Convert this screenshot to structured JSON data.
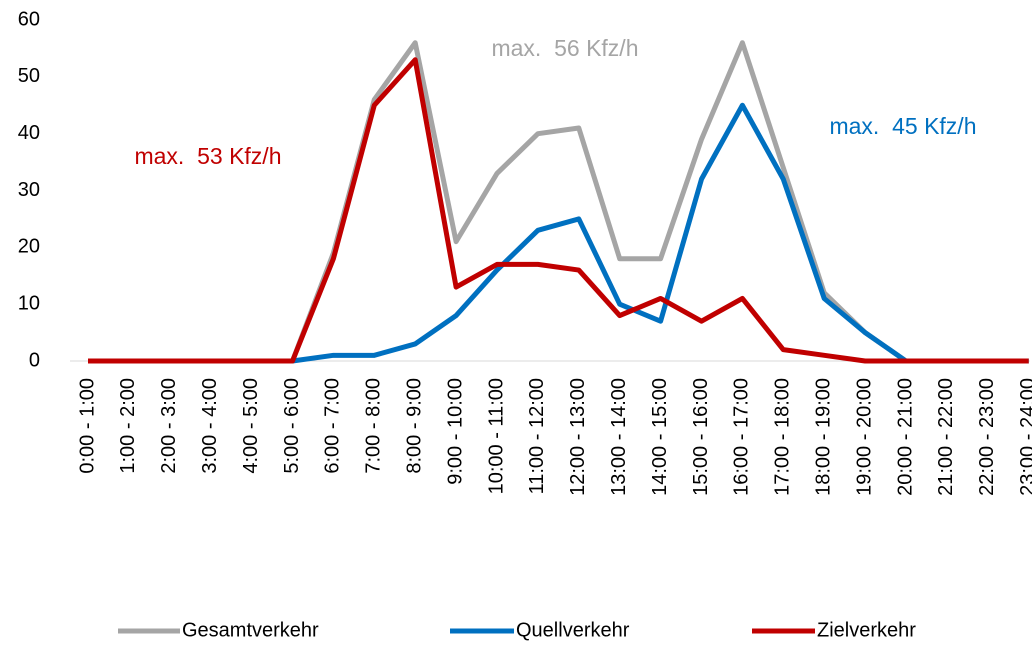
{
  "chart_data": {
    "type": "line",
    "categories": [
      "0:00 - 1:00",
      "1:00 - 2:00",
      "2:00 - 3:00",
      "3:00 - 4:00",
      "4:00 - 5:00",
      "5:00 - 6:00",
      "6:00 - 7:00",
      "7:00 - 8:00",
      "8:00 - 9:00",
      "9:00 - 10:00",
      "10:00 - 11:00",
      "11:00 - 12:00",
      "12:00 - 13:00",
      "13:00 - 14:00",
      "14:00 - 15:00",
      "15:00 - 16:00",
      "16:00 - 17:00",
      "17:00 - 18:00",
      "18:00 - 19:00",
      "19:00 - 20:00",
      "20:00 - 21:00",
      "21:00 - 22:00",
      "22:00 - 23:00",
      "23:00 - 24:00"
    ],
    "series": [
      {
        "name": "Gesamtverkehr",
        "color": "#a5a5a5",
        "values": [
          0,
          0,
          0,
          0,
          0,
          0,
          19,
          46,
          56,
          21,
          33,
          40,
          41,
          18,
          18,
          39,
          56,
          34,
          12,
          5,
          0,
          0,
          0,
          0
        ]
      },
      {
        "name": "Quellverkehr",
        "color": "#0070c0",
        "values": [
          0,
          0,
          0,
          0,
          0,
          0,
          1,
          1,
          3,
          8,
          16,
          23,
          25,
          10,
          7,
          32,
          45,
          32,
          11,
          5,
          0,
          0,
          0,
          0
        ]
      },
      {
        "name": "Zielverkehr",
        "color": "#c00000",
        "values": [
          0,
          0,
          0,
          0,
          0,
          0,
          18,
          45,
          53,
          13,
          17,
          17,
          16,
          8,
          11,
          7,
          11,
          2,
          1,
          0,
          0,
          0,
          0,
          0
        ]
      }
    ],
    "annotations": [
      {
        "text": "max.  56 Kfz/h",
        "color": "#a5a5a5"
      },
      {
        "text": "max.  45 Kfz/h",
        "color": "#0070c0"
      },
      {
        "text": "max.  53 Kfz/h",
        "color": "#c00000"
      }
    ],
    "ylim": [
      0,
      60
    ],
    "yticks": [
      0,
      10,
      20,
      30,
      40,
      50,
      60
    ],
    "grid": false,
    "legend": "bottom"
  }
}
